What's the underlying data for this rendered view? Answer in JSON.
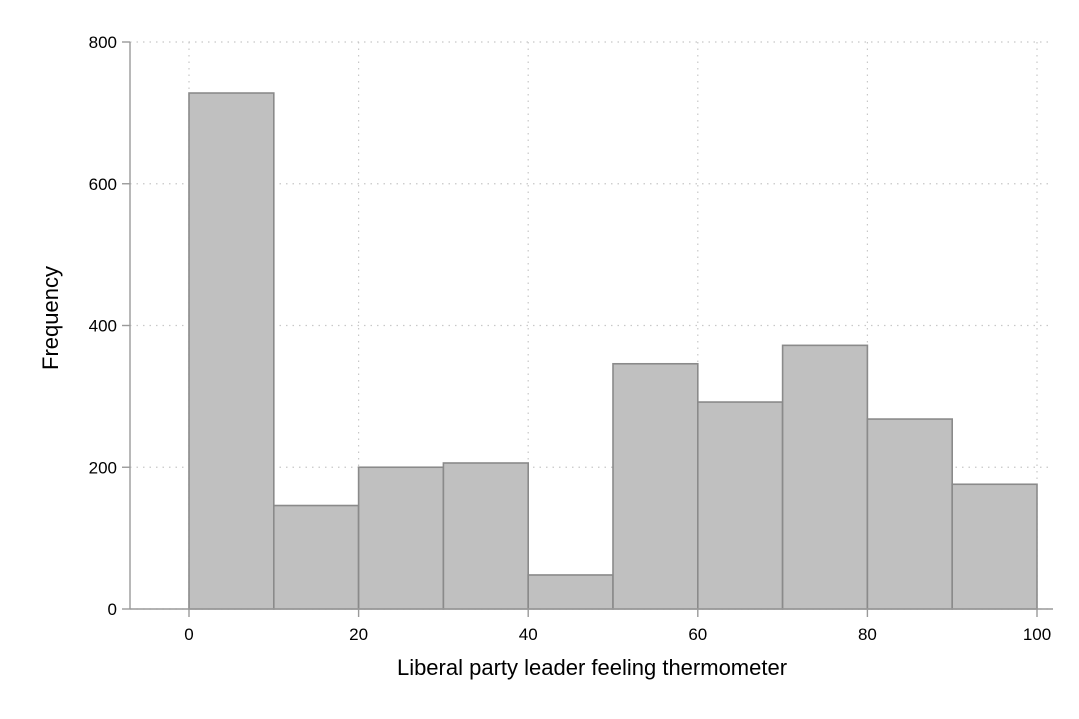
{
  "chart_data": {
    "type": "bar",
    "title": "",
    "xlabel": "Liberal party leader feeling thermometer",
    "ylabel": "Frequency",
    "xlim": [
      -7,
      102
    ],
    "ylim": [
      0,
      800
    ],
    "xticks": [
      0,
      20,
      40,
      60,
      80,
      100
    ],
    "yticks": [
      0,
      200,
      400,
      600,
      800
    ],
    "grid": true,
    "legend": "none",
    "bins": [
      {
        "from": 0,
        "to": 10,
        "value": 728
      },
      {
        "from": 10,
        "to": 20,
        "value": 146
      },
      {
        "from": 20,
        "to": 30,
        "value": 200
      },
      {
        "from": 30,
        "to": 40,
        "value": 206
      },
      {
        "from": 40,
        "to": 50,
        "value": 48
      },
      {
        "from": 50,
        "to": 60,
        "value": 346
      },
      {
        "from": 60,
        "to": 70,
        "value": 292
      },
      {
        "from": 70,
        "to": 80,
        "value": 372
      },
      {
        "from": 80,
        "to": 90,
        "value": 268
      },
      {
        "from": 90,
        "to": 100,
        "value": 176
      }
    ],
    "colors": {
      "bar_fill": "#c0c0c0",
      "bar_stroke": "#8a8a8a",
      "grid": "#c8c8c8",
      "axis": "#9a9a9a"
    }
  }
}
